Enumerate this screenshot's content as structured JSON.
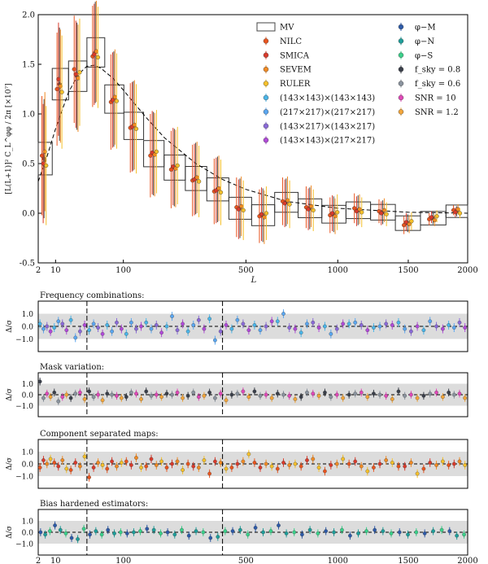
{
  "figure": {
    "main_ylabel": "[L(L+1)]² C_L^φφ / 2π [×10⁷]",
    "xlabel": "L",
    "ylabel_sub": "Δ/σ"
  },
  "chart_data": [
    {
      "type": "scatter",
      "panel": "main",
      "title": "",
      "xlabel": "L",
      "ylabel": "[L(L+1)]² C_L^φφ / 2π [×10⁷]",
      "xscale": "sqrt",
      "xlim": [
        2,
        2000
      ],
      "ylim": [
        -0.5,
        2.0
      ],
      "xticks": [
        2,
        10,
        100,
        500,
        1000,
        1500,
        2000
      ],
      "yticks": [
        -0.5,
        0.0,
        0.5,
        1.0,
        1.5,
        2.0
      ],
      "bins": [
        [
          2,
          8
        ],
        [
          8,
          20
        ],
        [
          20,
          40
        ],
        [
          40,
          66
        ],
        [
          66,
          101
        ],
        [
          101,
          145
        ],
        [
          145,
          199
        ],
        [
          199,
          264
        ],
        [
          264,
          339
        ],
        [
          339,
          426
        ],
        [
          426,
          526
        ],
        [
          526,
          638
        ],
        [
          638,
          763
        ],
        [
          763,
          901
        ],
        [
          901,
          1053
        ],
        [
          1053,
          1220
        ],
        [
          1220,
          1401
        ],
        [
          1401,
          1597
        ],
        [
          1597,
          1809
        ],
        [
          1809,
          2000
        ]
      ],
      "model_curve": {
        "L": [
          2,
          5,
          10,
          20,
          30,
          40,
          50,
          60,
          80,
          100,
          150,
          200,
          300,
          400,
          500,
          700,
          1000,
          1500,
          2000
        ],
        "value": [
          0.32,
          0.55,
          0.85,
          1.22,
          1.4,
          1.48,
          1.49,
          1.46,
          1.36,
          1.24,
          0.97,
          0.76,
          0.5,
          0.34,
          0.24,
          0.12,
          0.05,
          0.01,
          0.0
        ]
      },
      "series": [
        {
          "name": "MV",
          "values": [
            0.55,
            1.3,
            1.38,
            1.62,
            1.15,
            0.88,
            0.6,
            0.46,
            0.35,
            0.24,
            0.05,
            -0.02,
            0.11,
            0.05,
            -0.01,
            0.03,
            0.01,
            -0.1,
            -0.05,
            0.02
          ]
        },
        {
          "name": "NILC",
          "values": [
            0.58,
            1.25,
            1.45,
            1.58,
            1.12,
            0.86,
            0.58,
            0.44,
            0.33,
            0.22,
            0.06,
            -0.03,
            0.12,
            0.06,
            -0.02,
            0.05,
            0.02,
            -0.12,
            -0.06,
            0.03
          ]
        },
        {
          "name": "SMICA",
          "values": [
            0.5,
            1.35,
            1.4,
            1.6,
            1.14,
            0.87,
            0.61,
            0.47,
            0.34,
            0.23,
            0.04,
            -0.01,
            0.1,
            0.04,
            0.0,
            0.02,
            0.0,
            -0.09,
            -0.04,
            0.01
          ]
        },
        {
          "name": "SEVEM",
          "values": [
            0.62,
            1.28,
            1.36,
            1.63,
            1.17,
            0.89,
            0.59,
            0.45,
            0.36,
            0.25,
            0.07,
            -0.04,
            0.13,
            0.07,
            -0.03,
            0.04,
            0.03,
            -0.11,
            -0.07,
            0.04
          ]
        },
        {
          "name": "RULER",
          "values": [
            0.48,
            1.22,
            1.42,
            1.57,
            1.13,
            0.85,
            0.62,
            0.48,
            0.32,
            0.21,
            0.03,
            0.0,
            0.09,
            0.03,
            0.01,
            0.01,
            -0.01,
            -0.08,
            -0.03,
            0.0
          ]
        }
      ]
    },
    {
      "type": "scatter",
      "panel": "sub1",
      "title": "Frequency combinations:",
      "ylabel": "Δ/σ",
      "ylim": [
        -2.0,
        2.0
      ],
      "yticks": [
        1.0,
        0.0,
        -1.0
      ],
      "dashed_L": [
        40,
        400
      ],
      "band": [
        -1.0,
        1.0
      ],
      "series": [
        {
          "name": "(143×143)×(143×143)",
          "values": [
            0.2,
            -0.1,
            0.5,
            -0.3,
            0.1,
            -0.6,
            0.3,
            0.0,
            -0.4,
            0.6,
            -0.2,
            0.1,
            0.4,
            -0.5,
            0.0,
            0.2,
            -0.1,
            0.3,
            -0.3,
            0.1
          ]
        },
        {
          "name": "(217×217)×(217×217)",
          "values": [
            -0.2,
            0.4,
            -0.9,
            0.2,
            -0.4,
            0.3,
            -0.2,
            0.8,
            0.1,
            -1.1,
            0.5,
            -0.3,
            1.0,
            0.2,
            -0.6,
            0.3,
            0.0,
            -0.2,
            0.4,
            -0.1
          ]
        },
        {
          "name": "(143×217)×(143×217)",
          "values": [
            0.0,
            0.2,
            -0.4,
            -0.1,
            0.3,
            -0.2,
            0.1,
            -0.3,
            0.5,
            -0.4,
            0.2,
            0.0,
            -0.1,
            0.3,
            -0.2,
            0.1,
            0.2,
            -0.4,
            0.0,
            0.3
          ]
        },
        {
          "name": "(143×143)×(217×217)",
          "values": [
            -0.4,
            -0.3,
            0.1,
            -0.6,
            -0.2,
            0.0,
            -0.5,
            0.2,
            -0.2,
            0.1,
            -0.3,
            0.4,
            -0.2,
            -0.1,
            0.2,
            -0.3,
            0.1,
            0.0,
            -0.2,
            -0.1
          ]
        }
      ]
    },
    {
      "type": "scatter",
      "panel": "sub2",
      "title": "Mask variation:",
      "ylabel": "Δ/σ",
      "ylim": [
        -2.0,
        2.0
      ],
      "yticks": [
        1.0,
        0.0,
        -1.0
      ],
      "dashed_L": [
        40,
        400
      ],
      "band": [
        -1.0,
        1.0
      ],
      "series": [
        {
          "name": "f_sky = 0.8",
          "values": [
            1.2,
            0.2,
            -0.3,
            0.3,
            0.1,
            -0.2,
            0.3,
            0.1,
            -0.1,
            0.2,
            0.0,
            0.3,
            0.1,
            -0.2,
            0.2,
            0.0,
            0.1,
            0.3,
            -0.1,
            0.2
          ]
        },
        {
          "name": "f_sky = 0.6",
          "values": [
            -0.3,
            -0.6,
            0.1,
            -0.2,
            0.0,
            0.2,
            -0.1,
            0.0,
            0.2,
            -0.3,
            0.1,
            -0.1,
            0.0,
            0.2,
            -0.2,
            0.1,
            0.0,
            -0.1,
            0.1,
            0.0
          ]
        },
        {
          "name": "SNR = 10",
          "values": [
            0.1,
            -0.2,
            0.2,
            0.0,
            -0.1,
            0.1,
            0.0,
            0.2,
            -0.2,
            0.1,
            0.3,
            0.0,
            -0.1,
            0.1,
            0.0,
            0.2,
            -0.1,
            0.0,
            0.2,
            0.1
          ]
        },
        {
          "name": "SNR = 1.2",
          "values": [
            -0.2,
            0.0,
            -0.4,
            -0.5,
            -0.3,
            -0.4,
            -0.2,
            -0.3,
            -0.1,
            -0.5,
            -0.2,
            -0.3,
            -0.4,
            -0.1,
            -0.3,
            -0.2,
            -0.4,
            -0.3,
            -0.2,
            -0.3
          ]
        }
      ]
    },
    {
      "type": "scatter",
      "panel": "sub3",
      "title": "Component separated maps:",
      "ylabel": "Δ/σ",
      "ylim": [
        -2.0,
        2.0
      ],
      "yticks": [
        1.0,
        0.0,
        -1.0
      ],
      "dashed_L": [
        40,
        400
      ],
      "band": [
        -1.0,
        1.0
      ],
      "series": [
        {
          "name": "NILC",
          "values": [
            -0.3,
            0.1,
            -0.5,
            -1.1,
            -0.4,
            0.2,
            -0.2,
            -0.3,
            0.0,
            -0.8,
            -0.3,
            0.1,
            -0.4,
            -0.2,
            -0.6,
            0.0,
            -0.3,
            -0.2,
            -0.4,
            -0.1
          ]
        },
        {
          "name": "SMICA",
          "values": [
            0.3,
            -0.2,
            0.1,
            -0.3,
            0.2,
            -0.1,
            0.4,
            0.0,
            -0.2,
            0.2,
            0.0,
            -0.3,
            0.1,
            0.3,
            -0.1,
            0.2,
            0.0,
            -0.2,
            0.1,
            0.0
          ]
        },
        {
          "name": "SEVEM",
          "values": [
            0.0,
            0.3,
            -0.2,
            0.1,
            -0.2,
            0.5,
            -0.1,
            0.2,
            -0.3,
            0.1,
            0.2,
            0.0,
            -0.1,
            0.4,
            0.0,
            -0.2,
            0.3,
            0.1,
            -0.1,
            0.2
          ]
        },
        {
          "name": "RULER",
          "values": [
            0.4,
            -0.4,
            0.6,
            -0.1,
            0.1,
            -0.3,
            0.2,
            -0.5,
            0.3,
            -0.4,
            0.8,
            -0.2,
            0.0,
            -0.3,
            0.4,
            -0.6,
            0.1,
            -0.8,
            0.2,
            -0.1
          ]
        }
      ]
    },
    {
      "type": "scatter",
      "panel": "sub4",
      "title": "Bias hardened estimators:",
      "ylabel": "Δ/σ",
      "ylim": [
        -2.0,
        2.0
      ],
      "yticks": [
        1.0,
        0.0,
        -1.0
      ],
      "dashed_L": [
        40,
        400
      ],
      "band": [
        -1.0,
        1.0
      ],
      "series": [
        {
          "name": "φ−M",
          "values": [
            0.0,
            0.6,
            -0.5,
            -0.2,
            0.2,
            -0.1,
            0.3,
            0.0,
            -0.3,
            -0.5,
            0.1,
            0.4,
            0.6,
            -0.2,
            0.1,
            -0.3,
            0.2,
            0.0,
            -0.1,
            0.1
          ]
        },
        {
          "name": "φ−N",
          "values": [
            -0.2,
            0.2,
            -0.6,
            0.1,
            -0.1,
            0.0,
            0.2,
            -0.2,
            0.1,
            -0.4,
            0.2,
            0.0,
            -0.1,
            0.2,
            0.0,
            -0.1,
            0.1,
            -0.2,
            0.1,
            -0.3
          ]
        },
        {
          "name": "φ−S",
          "values": [
            0.1,
            -0.1,
            0.3,
            -0.2,
            0.0,
            0.1,
            -0.1,
            0.2,
            0.0,
            0.1,
            -0.2,
            0.1,
            0.0,
            -0.1,
            0.2,
            0.1,
            -0.1,
            0.0,
            0.2,
            -0.2
          ]
        }
      ]
    }
  ],
  "legend": {
    "col1": [
      {
        "label": "MV",
        "symbol": "box",
        "color": "#444444"
      },
      {
        "label": "NILC",
        "symbol": "dot",
        "color": "#e8541e"
      },
      {
        "label": "SMICA",
        "symbol": "dot",
        "color": "#d93a2b"
      },
      {
        "label": "SEVEM",
        "symbol": "dot",
        "color": "#f08a24"
      },
      {
        "label": "RULER",
        "symbol": "dot",
        "color": "#f5c02a"
      },
      {
        "label": "(143×143)×(143×143)",
        "symbol": "dot",
        "color": "#4ab5e8"
      },
      {
        "label": "(217×217)×(217×217)",
        "symbol": "dot",
        "color": "#5aa6f0"
      },
      {
        "label": "(143×217)×(143×217)",
        "symbol": "dot",
        "color": "#8a6ad8"
      },
      {
        "label": "(143×143)×(217×217)",
        "symbol": "dot",
        "color": "#b04ad8"
      }
    ],
    "col2": [
      {
        "label": "φ−M",
        "symbol": "dot",
        "color": "#2d5aa8"
      },
      {
        "label": "φ−N",
        "symbol": "dot",
        "color": "#1e9e9a"
      },
      {
        "label": "φ−S",
        "symbol": "dot",
        "color": "#3ad08a"
      },
      {
        "label": "f_sky = 0.8",
        "symbol": "dot",
        "color": "#3a3f4a"
      },
      {
        "label": "f_sky = 0.6",
        "symbol": "dot",
        "color": "#8a939e"
      },
      {
        "label": "SNR = 10",
        "symbol": "dot",
        "color": "#e048b8"
      },
      {
        "label": "SNR = 1.2",
        "symbol": "dot",
        "color": "#f2a53a"
      }
    ]
  }
}
